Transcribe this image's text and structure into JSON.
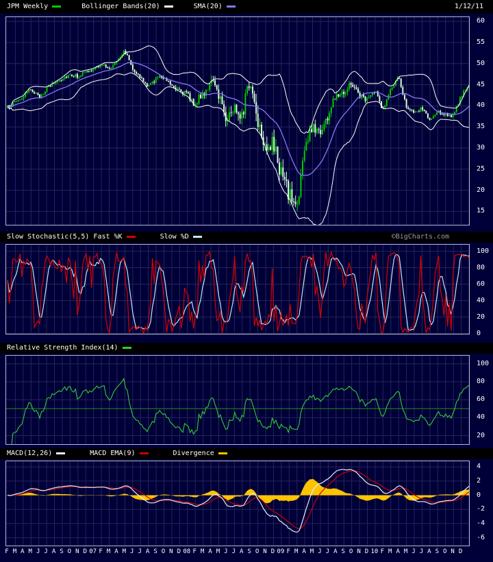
{
  "header": {
    "date": "1/12/11",
    "legend": [
      {
        "label": "JPM Weekly",
        "color": "#00cc00"
      },
      {
        "label": "Bollinger Bands(20)",
        "color": "#ffffff"
      },
      {
        "label": "SMA(20)",
        "color": "#8877ff"
      }
    ]
  },
  "watermark": "©BigCharts.com",
  "xaxis": {
    "labels": [
      "F",
      "M",
      "A",
      "M",
      "J",
      "J",
      "A",
      "S",
      "O",
      "N",
      "D",
      "07",
      "F",
      "M",
      "A",
      "M",
      "J",
      "J",
      "A",
      "S",
      "O",
      "N",
      "D",
      "08",
      "F",
      "M",
      "A",
      "M",
      "J",
      "J",
      "A",
      "S",
      "O",
      "N",
      "D",
      "09",
      "F",
      "M",
      "A",
      "M",
      "J",
      "J",
      "A",
      "S",
      "O",
      "N",
      "D",
      "10",
      "F",
      "M",
      "A",
      "M",
      "J",
      "J",
      "A",
      "S",
      "O",
      "N",
      "D"
    ]
  },
  "panels": {
    "price": {
      "yticks": [
        60,
        55,
        50,
        45,
        40,
        35,
        30,
        25,
        20,
        15
      ],
      "ymin": 11.5,
      "ymax": 61
    },
    "stochastic": {
      "legend": [
        {
          "label": "Slow Stochastic(5,5) Fast %K",
          "color": "#dd0000"
        },
        {
          "label": "Slow %D",
          "color": "#bfe8ff"
        }
      ],
      "yticks": [
        100,
        80,
        60,
        40,
        20,
        0
      ],
      "ymin": -2,
      "ymax": 108
    },
    "rsi": {
      "legend": [
        {
          "label": "Relative Strength Index(14)",
          "color": "#33cc33"
        }
      ],
      "yticks": [
        100,
        80,
        60,
        40,
        20
      ],
      "ymin": 9,
      "ymax": 109,
      "midline": 50
    },
    "macd": {
      "legend": [
        {
          "label": "MACD(12,26)",
          "color": "#e6eeff"
        },
        {
          "label": "MACD EMA(9)",
          "color": "#cc0000"
        },
        {
          "label": "Divergence",
          "color": "#ffc400"
        }
      ],
      "yticks": [
        4,
        2,
        0,
        -2,
        -4,
        -6
      ],
      "ymin": -7.3,
      "ymax": 4.8
    }
  },
  "colors": {
    "background": "#000038",
    "header_bg": "#000000",
    "grid": "#26265c",
    "border": "#b6b6d6",
    "text": "#ffffff",
    "up": "#00cc00",
    "down": "#d8ffd8",
    "bollinger": "#ffffff",
    "sma": "#8877ff",
    "stoch_k": "#dd0000",
    "stoch_d": "#bfe8ff",
    "rsi": "#33cc33",
    "rsi_mid": "#1e8f1e",
    "macd": "#e6eeff",
    "macd_ema": "#cc0000",
    "divergence": "#ffc400",
    "watermark": "#9898b0"
  },
  "chart_data": [
    {
      "type": "candlestick",
      "title": "JPM Weekly",
      "symbol": "JPM",
      "interval": "weekly",
      "x_start": "2006-02",
      "x_end": "2011-01",
      "monthly_closes": [
        39.5,
        41,
        42,
        44,
        42,
        44,
        45.5,
        46.5,
        47.5,
        47,
        48,
        48.5,
        50,
        48.5,
        51,
        53,
        49,
        46.5,
        44.5,
        46.5,
        47,
        45,
        44,
        42.5,
        40.5,
        43,
        45.5,
        43,
        37,
        39.5,
        38.5,
        46,
        37,
        31,
        30.5,
        24,
        19,
        16,
        30,
        35,
        34,
        37.5,
        43,
        43.5,
        45.5,
        42.5,
        41.5,
        43.5,
        39,
        44,
        46.5,
        40,
        38,
        39.5,
        36.5,
        38.5,
        38,
        37.5,
        42.5,
        44.5
      ],
      "overlays": [
        {
          "name": "Bollinger Bands(20)",
          "period": 20,
          "stddev": 2
        },
        {
          "name": "SMA(20)",
          "period": 20
        }
      ],
      "ylim": [
        11.5,
        61
      ],
      "yticks": [
        60,
        55,
        50,
        45,
        40,
        35,
        30,
        25,
        20,
        15
      ],
      "last_date": "1/12/11",
      "last_close": 44.5
    },
    {
      "type": "line",
      "title": "Slow Stochastic(5,5)",
      "series": [
        {
          "name": "Fast %K",
          "period": 5
        },
        {
          "name": "Slow %D",
          "period": 5
        }
      ],
      "derived_from": "JPM weekly price",
      "ylim": [
        0,
        100
      ],
      "yticks": [
        100,
        80,
        60,
        40,
        20,
        0
      ]
    },
    {
      "type": "line",
      "title": "Relative Strength Index(14)",
      "series": [
        {
          "name": "RSI",
          "period": 14
        }
      ],
      "midline": 50,
      "derived_from": "JPM weekly price",
      "ylim": [
        0,
        100
      ],
      "yticks": [
        100,
        80,
        60,
        40,
        20
      ]
    },
    {
      "type": "line+area",
      "title": "MACD(12,26)",
      "series": [
        {
          "name": "MACD",
          "fast": 12,
          "slow": 26
        },
        {
          "name": "MACD EMA(9)",
          "period": 9
        },
        {
          "name": "Divergence",
          "style": "area"
        }
      ],
      "derived_from": "JPM weekly price",
      "ylim": [
        -6,
        4
      ],
      "yticks": [
        4,
        2,
        0,
        -2,
        -4,
        -6
      ]
    }
  ]
}
